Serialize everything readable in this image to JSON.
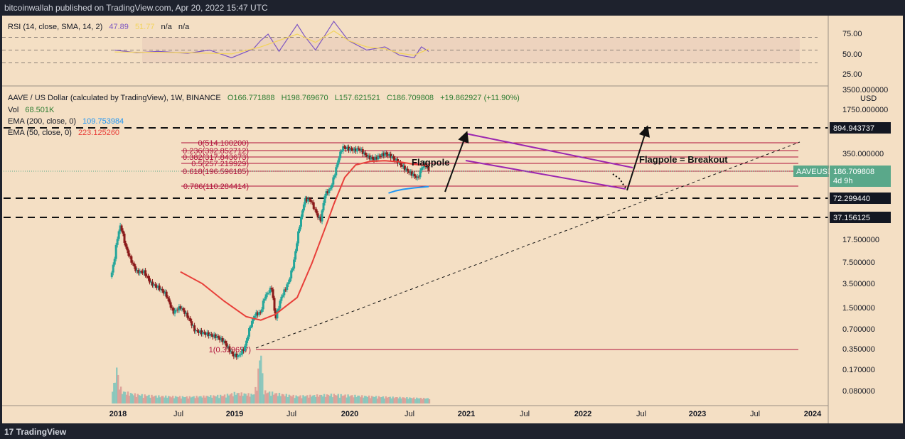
{
  "header": {
    "publisher": "bitcoinwallah published on TradingView.com, Apr 20, 2022 15:47 UTC"
  },
  "footer": {
    "brand": "TradingView",
    "logo_glyph": "17"
  },
  "rsi": {
    "label": "RSI (14, close, SMA, 14, 2)",
    "value1": "47.89",
    "value2": "51.77",
    "na1": "n/a",
    "na2": "n/a",
    "ticks": [
      "75.00",
      "50.00",
      "25.00"
    ],
    "colors": {
      "rsi": "#7e57c2",
      "sma": "#f2d45c"
    }
  },
  "legend": {
    "symbol": "AAVE / US Dollar (calculated by TradingView), 1W, BINANCE",
    "o": "O166.771888",
    "h": "H198.769670",
    "l": "L157.621521",
    "c": "C186.709808",
    "change": "+19.862927 (+11.90%)",
    "vol_label": "Vol",
    "vol_value": "68.501K",
    "ema200_label": "EMA (200, close, 0)",
    "ema200_value": "109.753984",
    "ema50_label": "EMA (50, close, 0)",
    "ema50_value": "223.125260"
  },
  "price_axis": {
    "unit": "USD",
    "ticks": [
      "3500.000000",
      "1750.000000",
      "350.000000",
      "17.500000",
      "7.500000",
      "3.500000",
      "1.500000",
      "0.700000",
      "0.350000",
      "0.170000",
      "0.080000"
    ]
  },
  "price_tags": [
    {
      "value": "894.943737",
      "style": "dark"
    },
    {
      "value": "72.299440",
      "style": "dark"
    },
    {
      "value": "37.156125",
      "style": "dark"
    }
  ],
  "current_tag": {
    "symbol": "AAVEUSD",
    "value": "186.709808",
    "countdown": "4d 9h",
    "color": "#5aa88a"
  },
  "time_axis": [
    "2018",
    "Jul",
    "2019",
    "Jul",
    "2020",
    "Jul",
    "2021",
    "Jul",
    "2022",
    "Jul",
    "2023",
    "Jul",
    "2024"
  ],
  "fib_levels": [
    {
      "label": "0(514.100200)"
    },
    {
      "label": "0.236(392.852712)"
    },
    {
      "label": "0.382(317.843673)"
    },
    {
      "label": "0.5(257.219929)"
    },
    {
      "label": "0.618(196.596185)"
    },
    {
      "label": "0.786(110.284414)"
    },
    {
      "label": "1(0.339657)"
    }
  ],
  "annotations": {
    "flagpole": "Flagpole",
    "breakout": "Flagpole = Breakout"
  },
  "colors": {
    "background": "#f4dfc4",
    "up": "#26a69a",
    "down": "#8b1a1a",
    "ema50": "#e8403a",
    "ema200": "#2196f3",
    "fib": "#b0103a",
    "channel": "#9c27b0"
  },
  "chart_data": {
    "type": "candlestick",
    "title": "AAVE / US Dollar (calculated by TradingView), 1W, BINANCE",
    "y_scale": "log",
    "ylabel": "USD",
    "xlim": [
      2017.95,
      2024.1
    ],
    "ylim": [
      0.05,
      3500
    ],
    "close_path": [
      [
        2017.95,
        5
      ],
      [
        2018.0,
        10
      ],
      [
        2018.03,
        18
      ],
      [
        2018.08,
        30
      ],
      [
        2018.15,
        14
      ],
      [
        2018.22,
        9
      ],
      [
        2018.3,
        6
      ],
      [
        2018.4,
        6
      ],
      [
        2018.5,
        4
      ],
      [
        2018.6,
        3.5
      ],
      [
        2018.7,
        2.8
      ],
      [
        2018.8,
        1.5
      ],
      [
        2018.9,
        1.8
      ],
      [
        2019.0,
        1.3
      ],
      [
        2019.1,
        0.8
      ],
      [
        2019.2,
        0.75
      ],
      [
        2019.3,
        0.7
      ],
      [
        2019.4,
        0.65
      ],
      [
        2019.5,
        0.55
      ],
      [
        2019.55,
        0.45
      ],
      [
        2019.62,
        0.35
      ],
      [
        2019.7,
        0.34
      ],
      [
        2019.78,
        0.45
      ],
      [
        2019.85,
        0.9
      ],
      [
        2019.92,
        1.4
      ],
      [
        2020.0,
        1.5
      ],
      [
        2020.05,
        2.5
      ],
      [
        2020.15,
        3.5
      ],
      [
        2020.2,
        1.2
      ],
      [
        2020.28,
        2.5
      ],
      [
        2020.38,
        4.2
      ],
      [
        2020.45,
        8
      ],
      [
        2020.52,
        25
      ],
      [
        2020.6,
        70
      ],
      [
        2020.68,
        70
      ],
      [
        2020.78,
        40
      ],
      [
        2020.82,
        35
      ],
      [
        2020.88,
        85
      ],
      [
        2020.95,
        100
      ],
      [
        2021.0,
        150
      ],
      [
        2021.07,
        300
      ],
      [
        2021.12,
        420
      ],
      [
        2021.2,
        400
      ],
      [
        2021.28,
        380
      ],
      [
        2021.35,
        400
      ],
      [
        2021.4,
        350
      ],
      [
        2021.47,
        300
      ],
      [
        2021.55,
        280
      ],
      [
        2021.6,
        300
      ],
      [
        2021.7,
        340
      ],
      [
        2021.78,
        310
      ],
      [
        2021.85,
        270
      ],
      [
        2021.92,
        230
      ],
      [
        2022.0,
        190
      ],
      [
        2022.08,
        165
      ],
      [
        2022.15,
        145
      ],
      [
        2022.2,
        205
      ],
      [
        2022.25,
        240
      ],
      [
        2022.3,
        186.709808
      ]
    ],
    "volume_path": [
      [
        2018.0,
        0.2
      ],
      [
        2018.02,
        0.5
      ],
      [
        2018.1,
        0.12
      ],
      [
        2018.3,
        0.08
      ],
      [
        2018.6,
        0.06
      ],
      [
        2019.0,
        0.05
      ],
      [
        2019.5,
        0.07
      ],
      [
        2019.65,
        0.1
      ],
      [
        2019.9,
        0.08
      ],
      [
        2020.0,
        0.8
      ],
      [
        2020.05,
        0.12
      ],
      [
        2020.5,
        0.06
      ],
      [
        2021.0,
        0.08
      ],
      [
        2022.0,
        0.04
      ],
      [
        2022.3,
        0.03
      ]
    ],
    "series": [
      {
        "name": "EMA (50, close, 0)",
        "points": [
          [
            2018.9,
            6
          ],
          [
            2019.2,
            4
          ],
          [
            2019.5,
            2.2
          ],
          [
            2019.8,
            1.3
          ],
          [
            2020.0,
            1.15
          ],
          [
            2020.2,
            1.4
          ],
          [
            2020.5,
            2.5
          ],
          [
            2020.7,
            8
          ],
          [
            2020.9,
            30
          ],
          [
            2021.0,
            60
          ],
          [
            2021.15,
            150
          ],
          [
            2021.3,
            230
          ],
          [
            2021.5,
            260
          ],
          [
            2021.7,
            265
          ],
          [
            2021.9,
            255
          ],
          [
            2022.1,
            235
          ],
          [
            2022.3,
            223.12526
          ]
        ]
      },
      {
        "name": "EMA (200, close, 0)",
        "points": [
          [
            2021.75,
            88
          ],
          [
            2021.85,
            95
          ],
          [
            2021.95,
            100
          ],
          [
            2022.1,
            105
          ],
          [
            2022.3,
            109.753984
          ]
        ]
      }
    ],
    "fib_values": [
      514.1002,
      392.852712,
      317.843673,
      257.219929,
      196.596185,
      110.284414,
      0.339657
    ],
    "horizontal_levels": [
      894.943737,
      72.29944,
      37.156125
    ],
    "rsi_series": {
      "rsi": [
        [
          2018.0,
          50
        ],
        [
          2018.3,
          46
        ],
        [
          2018.6,
          48
        ],
        [
          2019.0,
          45
        ],
        [
          2019.3,
          50
        ],
        [
          2019.6,
          38
        ],
        [
          2019.9,
          52
        ],
        [
          2020.0,
          65
        ],
        [
          2020.1,
          75
        ],
        [
          2020.25,
          48
        ],
        [
          2020.5,
          90
        ],
        [
          2020.6,
          72
        ],
        [
          2020.75,
          50
        ],
        [
          2020.85,
          68
        ],
        [
          2021.0,
          95
        ],
        [
          2021.2,
          65
        ],
        [
          2021.45,
          50
        ],
        [
          2021.7,
          55
        ],
        [
          2021.9,
          42
        ],
        [
          2022.1,
          38
        ],
        [
          2022.2,
          55
        ],
        [
          2022.3,
          47.89
        ]
      ],
      "sma": [
        [
          2018.0,
          47
        ],
        [
          2019.0,
          46
        ],
        [
          2019.6,
          44
        ],
        [
          2020.0,
          55
        ],
        [
          2020.5,
          75
        ],
        [
          2020.75,
          62
        ],
        [
          2021.0,
          80
        ],
        [
          2021.2,
          65
        ],
        [
          2021.45,
          55
        ],
        [
          2021.7,
          52
        ],
        [
          2021.9,
          45
        ],
        [
          2022.1,
          42
        ],
        [
          2022.3,
          51.77
        ]
      ]
    }
  }
}
